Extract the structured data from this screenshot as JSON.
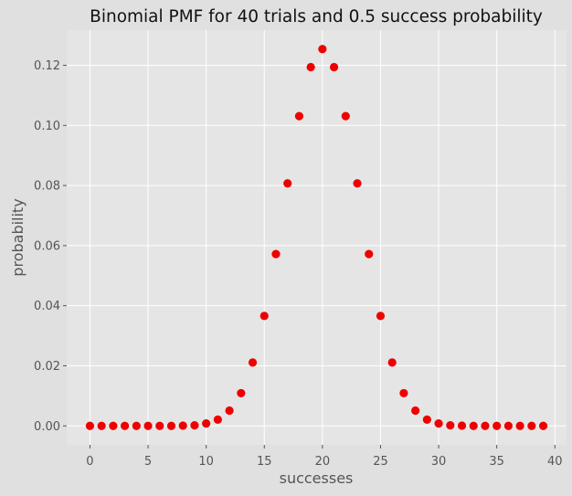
{
  "chart_data": {
    "type": "scatter",
    "title": "Binomial PMF for 40 trials and 0.5 success probability",
    "xlabel": "successes",
    "ylabel": "probability",
    "xlim": [
      -2,
      41
    ],
    "ylim": [
      -0.0063,
      0.1317
    ],
    "xticks": [
      0,
      5,
      10,
      15,
      20,
      25,
      30,
      35,
      40
    ],
    "yticks": [
      0.0,
      0.02,
      0.04,
      0.06,
      0.08,
      0.1,
      0.12
    ],
    "xtick_labels": [
      "0",
      "5",
      "10",
      "15",
      "20",
      "25",
      "30",
      "35",
      "40"
    ],
    "ytick_labels": [
      "0.00",
      "0.02",
      "0.04",
      "0.06",
      "0.08",
      "0.10",
      "0.12"
    ],
    "grid": true,
    "marker_color": "#ee0000",
    "background_color": "#e5e5e5",
    "figure_color": "#e0e0e0",
    "x": [
      0,
      1,
      2,
      3,
      4,
      5,
      6,
      7,
      8,
      9,
      10,
      11,
      12,
      13,
      14,
      15,
      16,
      17,
      18,
      19,
      20,
      21,
      22,
      23,
      24,
      25,
      26,
      27,
      28,
      29,
      30,
      31,
      32,
      33,
      34,
      35,
      36,
      37,
      38,
      39
    ],
    "y": [
      0.0,
      0.0,
      0.0,
      0.0,
      0.0,
      0.0,
      0.0,
      0.0,
      0.0001,
      0.0002,
      0.0008,
      0.0021,
      0.0051,
      0.0109,
      0.0211,
      0.0366,
      0.0572,
      0.0807,
      0.1031,
      0.1194,
      0.1254,
      0.1194,
      0.1031,
      0.0807,
      0.0572,
      0.0366,
      0.0211,
      0.0109,
      0.0051,
      0.0021,
      0.0008,
      0.0002,
      0.0001,
      0.0,
      0.0,
      0.0,
      0.0,
      0.0,
      0.0,
      0.0
    ]
  }
}
